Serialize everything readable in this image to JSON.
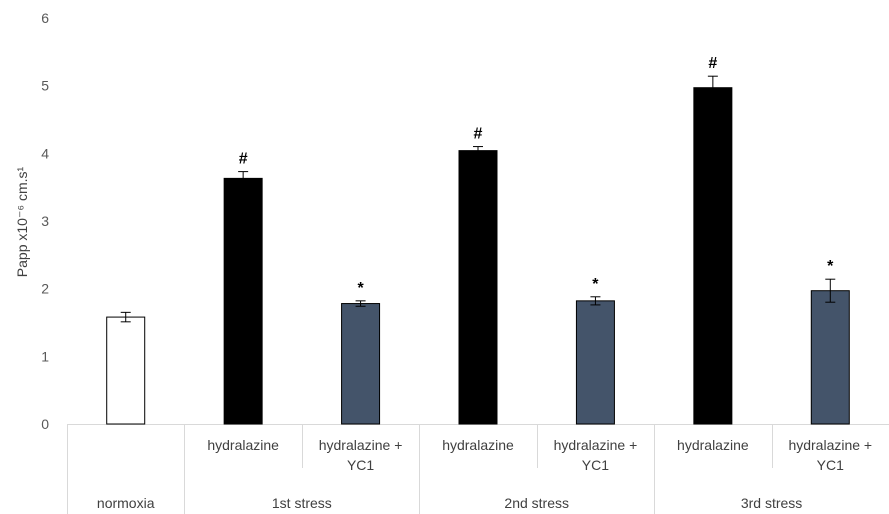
{
  "chart_data": {
    "type": "bar",
    "ylabel": "Papp x10⁻⁶ cm.s¹",
    "ylim": [
      0,
      6
    ],
    "yticks": [
      "0",
      "1",
      "2",
      "3",
      "4",
      "5",
      "6"
    ],
    "grid": false,
    "groups": [
      {
        "label": "normoxia",
        "span": 1
      },
      {
        "label": "1st stress",
        "span": 2
      },
      {
        "label": "2nd stress",
        "span": 2
      },
      {
        "label": "3rd stress",
        "span": 2
      }
    ],
    "bars": [
      {
        "category": "",
        "value": 1.58,
        "error": 0.07,
        "color": "#ffffff",
        "marker": ""
      },
      {
        "category": "hydralazine",
        "value": 3.63,
        "error": 0.1,
        "color": "#000000",
        "marker": "#"
      },
      {
        "category": "hydralazine + YC1",
        "value": 1.78,
        "error": 0.04,
        "color": "#44546a",
        "marker": "*"
      },
      {
        "category": "hydralazine",
        "value": 4.04,
        "error": 0.06,
        "color": "#000000",
        "marker": "#"
      },
      {
        "category": "hydralazine + YC1",
        "value": 1.82,
        "error": 0.06,
        "color": "#44546a",
        "marker": "*"
      },
      {
        "category": "hydralazine",
        "value": 4.97,
        "error": 0.17,
        "color": "#000000",
        "marker": "#"
      },
      {
        "category": "hydralazine + YC1",
        "value": 1.97,
        "error": 0.17,
        "color": "#44546a",
        "marker": "*"
      }
    ]
  }
}
